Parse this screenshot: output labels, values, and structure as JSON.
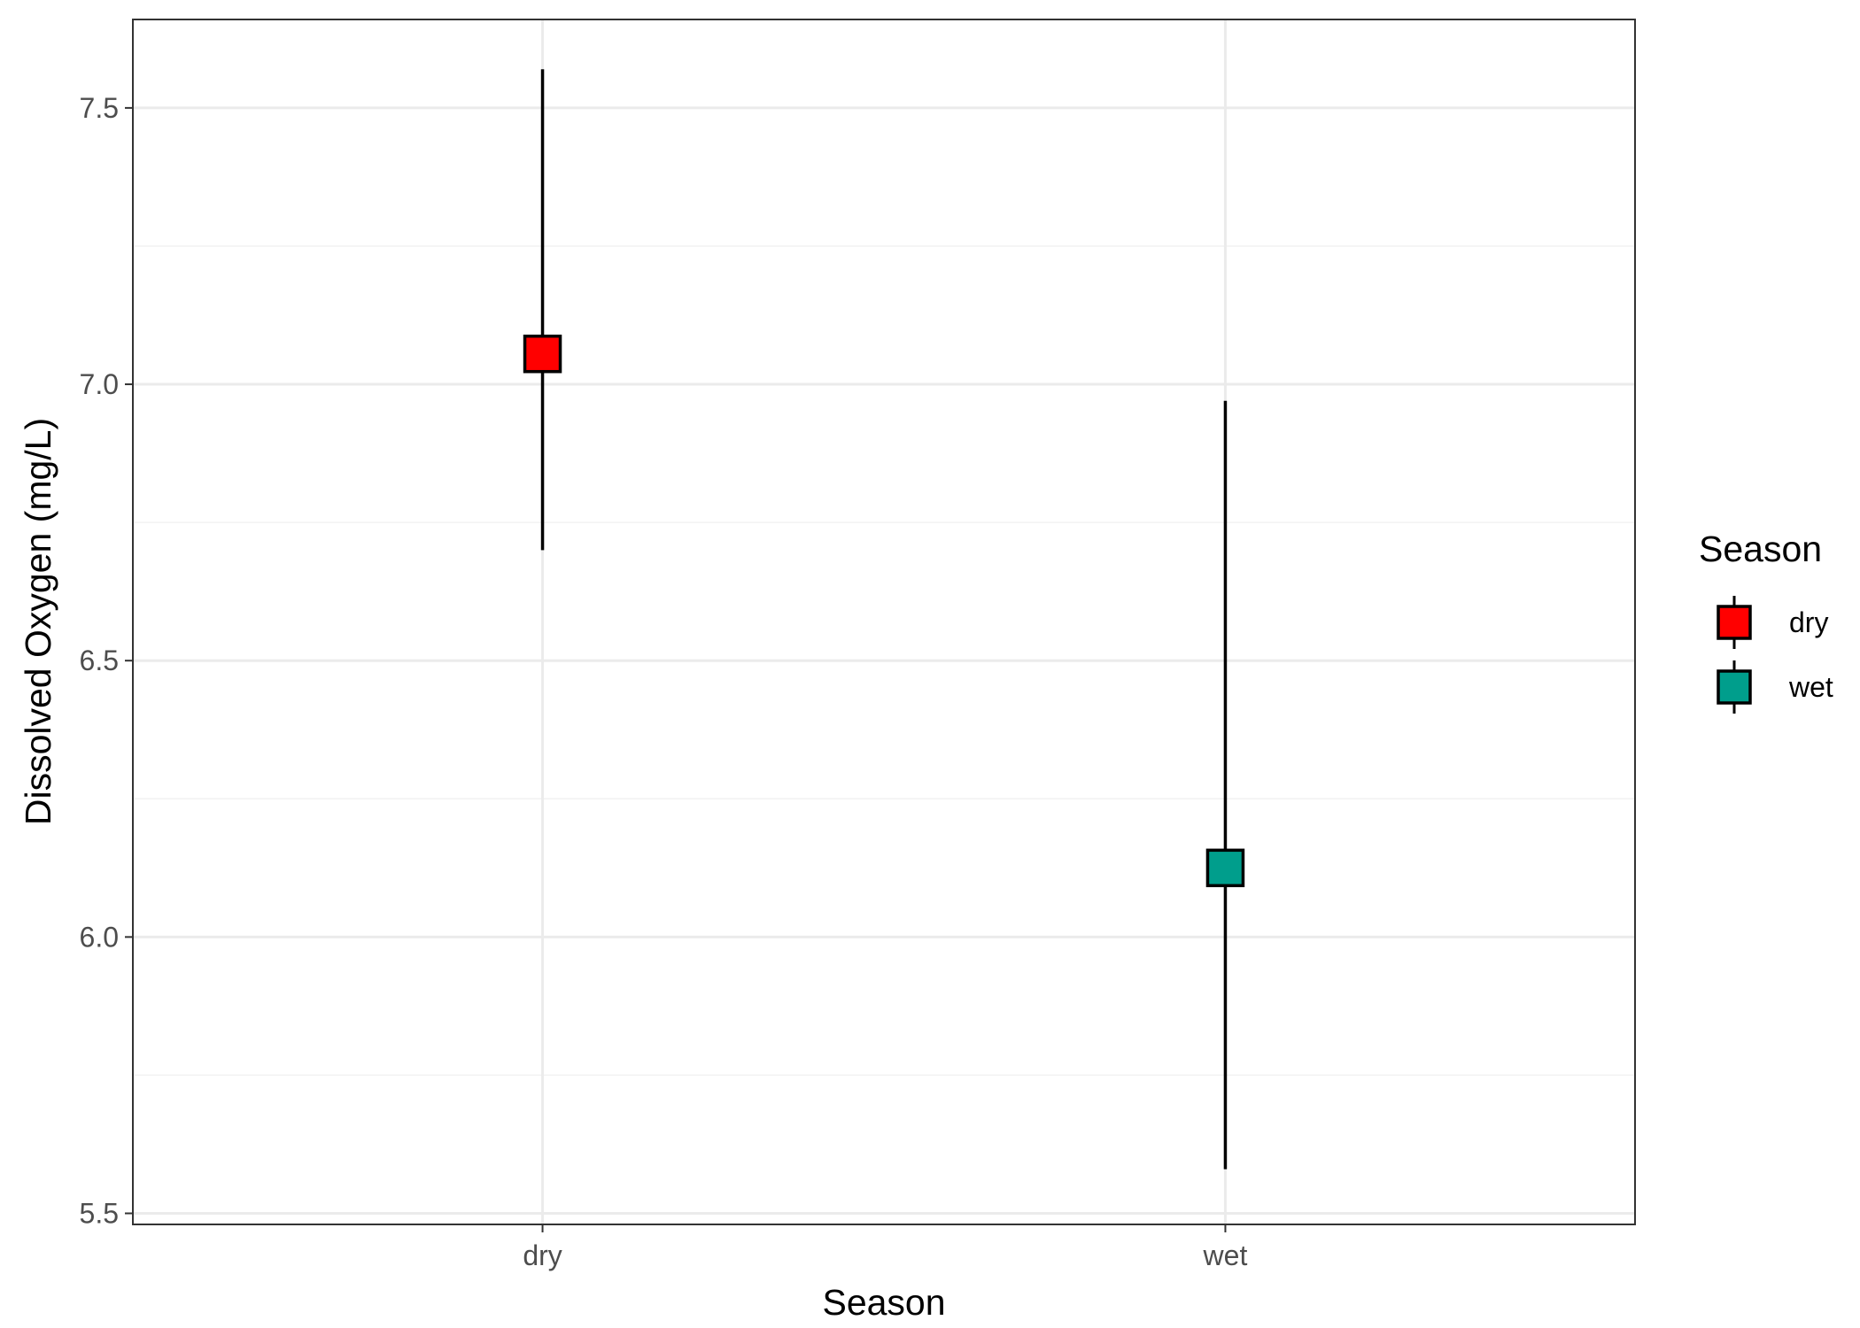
{
  "chart_data": {
    "type": "scatter",
    "title": "",
    "xlabel": "Season",
    "ylabel": "Dissolved Oxygen (mg/L)",
    "categories": [
      "dry",
      "wet"
    ],
    "ylim": [
      5.48,
      7.66
    ],
    "yticks": [
      "5.5",
      "6.0",
      "6.5",
      "7.0",
      "7.5"
    ],
    "grid": true,
    "legend": {
      "title": "Season",
      "position": "right"
    },
    "series": [
      {
        "name": "dry",
        "category": "dry",
        "mean": 7.055,
        "lower": 6.7,
        "upper": 7.57,
        "color": "#ff0000"
      },
      {
        "name": "wet",
        "category": "wet",
        "mean": 6.125,
        "lower": 5.58,
        "upper": 6.97,
        "color": "#009e8c"
      }
    ]
  }
}
